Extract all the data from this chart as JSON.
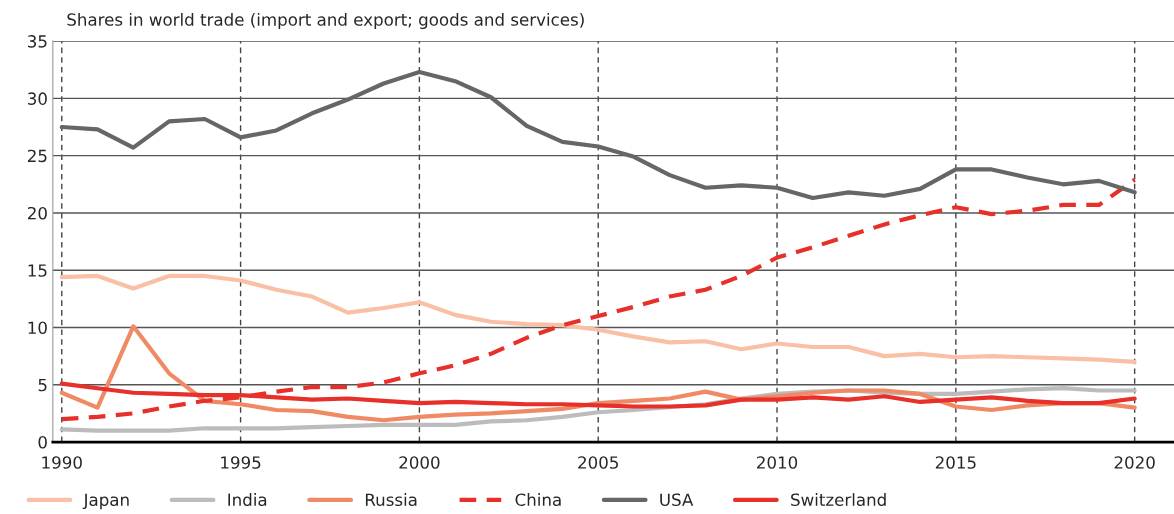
{
  "chart_data": {
    "type": "line",
    "title": "Shares in world trade (import and export; goods and services)",
    "x": [
      1990,
      1991,
      1992,
      1993,
      1994,
      1995,
      1996,
      1997,
      1998,
      1999,
      2000,
      2001,
      2002,
      2003,
      2004,
      2005,
      2006,
      2007,
      2008,
      2009,
      2010,
      2011,
      2012,
      2013,
      2014,
      2015,
      2016,
      2017,
      2018,
      2019,
      2020
    ],
    "series": [
      {
        "name": "Japan",
        "color": "#f9c0a6",
        "line_style": "solid",
        "values": [
          14.4,
          14.5,
          13.4,
          14.5,
          14.5,
          14.1,
          13.3,
          12.7,
          11.3,
          11.7,
          12.2,
          11.1,
          10.5,
          10.3,
          10.2,
          9.8,
          9.2,
          8.7,
          8.8,
          8.1,
          8.6,
          8.3,
          8.3,
          7.5,
          7.7,
          7.4,
          7.5,
          7.4,
          7.3,
          7.2,
          7.0
        ]
      },
      {
        "name": "India",
        "color": "#bcbcbe",
        "line_style": "solid",
        "values": [
          1.1,
          1.0,
          1.0,
          1.0,
          1.2,
          1.2,
          1.2,
          1.3,
          1.4,
          1.5,
          1.5,
          1.5,
          1.8,
          1.9,
          2.2,
          2.6,
          2.8,
          null,
          3.3,
          3.8,
          4.2,
          4.4,
          4.5,
          4.3,
          4.2,
          4.2,
          4.4,
          4.6,
          4.7,
          4.5,
          4.5
        ]
      },
      {
        "name": "Russia",
        "color": "#f08a64",
        "line_style": "solid",
        "values": [
          4.3,
          3.0,
          10.1,
          6.0,
          3.6,
          3.3,
          2.8,
          2.7,
          2.2,
          1.9,
          2.2,
          2.4,
          2.5,
          2.7,
          2.9,
          3.4,
          3.6,
          3.8,
          4.4,
          3.7,
          4.0,
          4.3,
          4.5,
          4.5,
          4.2,
          3.1,
          2.8,
          3.2,
          3.4,
          3.4,
          3.0
        ]
      },
      {
        "name": "China",
        "color": "#e8302a",
        "line_style": "dashed",
        "values": [
          2.0,
          2.2,
          2.5,
          3.1,
          3.6,
          3.9,
          4.4,
          4.8,
          4.8,
          5.2,
          6.0,
          6.7,
          7.7,
          9.1,
          10.2,
          11.0,
          11.8,
          12.7,
          13.3,
          14.5,
          16.1,
          17.0,
          18.0,
          19.0,
          19.8,
          20.5,
          19.9,
          20.2,
          20.7,
          20.7,
          22.9
        ]
      },
      {
        "name": "USA",
        "color": "#666666",
        "line_style": "solid",
        "values": [
          27.5,
          27.3,
          25.7,
          28.0,
          28.2,
          26.6,
          27.2,
          28.7,
          29.9,
          31.3,
          32.3,
          31.5,
          30.1,
          27.6,
          26.2,
          25.8,
          24.9,
          23.3,
          22.2,
          22.4,
          22.2,
          21.3,
          21.8,
          21.5,
          22.1,
          23.8,
          23.8,
          23.1,
          22.5,
          22.8,
          21.8
        ]
      },
      {
        "name": "Switzerland",
        "color": "#e8302a",
        "line_style": "solid",
        "values": [
          5.1,
          4.7,
          4.3,
          4.2,
          4.1,
          4.1,
          3.9,
          3.7,
          3.8,
          3.6,
          3.4,
          3.5,
          3.4,
          3.3,
          3.3,
          3.2,
          3.1,
          3.1,
          3.2,
          3.7,
          3.7,
          3.9,
          3.7,
          4.0,
          3.5,
          3.7,
          3.9,
          3.6,
          3.4,
          3.4,
          3.8
        ]
      }
    ],
    "xlim": [
      1989.75,
      2021.1
    ],
    "xticks": [
      1990,
      1995,
      2000,
      2005,
      2010,
      2015,
      2020
    ],
    "ylim": [
      0,
      35
    ],
    "yticks": [
      0,
      5,
      10,
      15,
      20,
      25,
      30,
      35
    ],
    "grid": true,
    "legend": "bottom",
    "marker": "none"
  }
}
